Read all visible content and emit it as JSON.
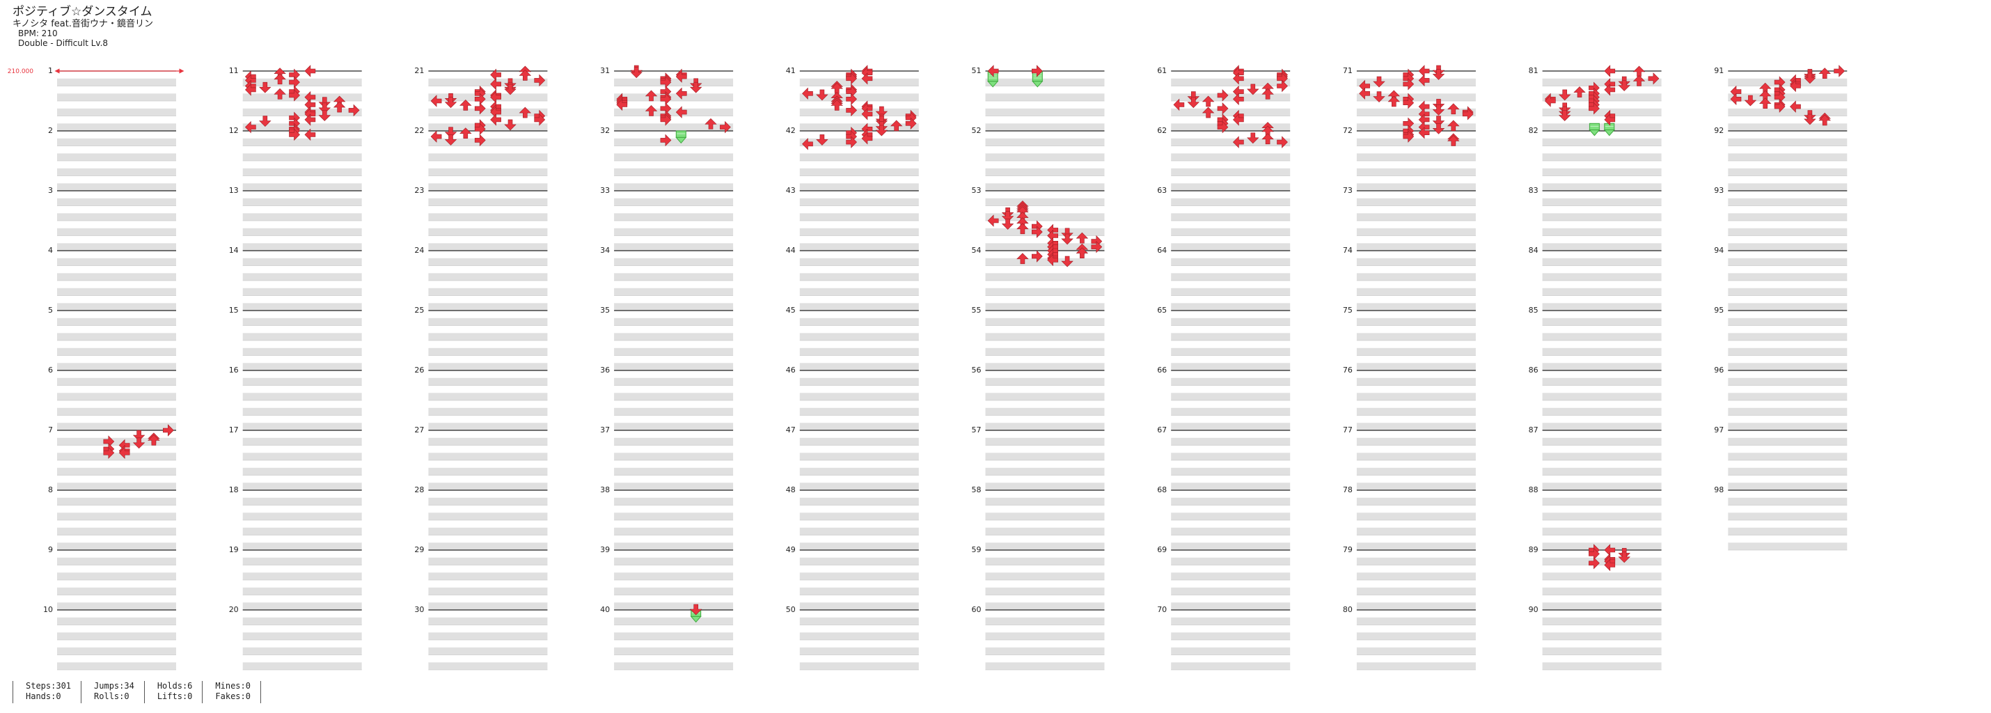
{
  "song": {
    "title": "ポジティブ☆ダンスタイム",
    "artist": "キノシタ feat.音街ウナ・鏡音リン",
    "bpm": "BPM: 210",
    "chart": "Double - Difficult Lv.8"
  },
  "bpm_marker": "210.000",
  "measures": [
    "1",
    "2",
    "3",
    "4",
    "5",
    "6",
    "7",
    "8",
    "9",
    "10",
    "11",
    "12",
    "13",
    "14",
    "15",
    "16",
    "17",
    "18",
    "19",
    "20",
    "21",
    "22",
    "23",
    "24",
    "25",
    "26",
    "27",
    "28",
    "29",
    "30",
    "31",
    "32",
    "33",
    "34",
    "35",
    "36",
    "37",
    "38",
    "39",
    "40",
    "41",
    "42",
    "43",
    "44",
    "45",
    "46",
    "47",
    "48",
    "49",
    "50",
    "51",
    "52",
    "53",
    "54",
    "55",
    "56",
    "57",
    "58",
    "59",
    "60",
    "61",
    "62",
    "63",
    "64",
    "65",
    "66",
    "67",
    "68",
    "69",
    "70",
    "71",
    "72",
    "73",
    "74",
    "75",
    "76",
    "77",
    "78",
    "79",
    "80",
    "81",
    "82",
    "83",
    "84",
    "85",
    "86",
    "87",
    "88",
    "89",
    "90",
    "91",
    "92",
    "93",
    "94",
    "95",
    "96",
    "97",
    "98"
  ],
  "stats": {
    "steps": "Steps:301",
    "hands": "Hands:0",
    "jumps": "Jumps:34",
    "rolls": "Rolls:0",
    "holds": "Holds:6",
    "lifts": "Lifts:0",
    "mines": "Mines:0",
    "fakes": "Fakes:0"
  },
  "colors": {
    "note": "#e8353f",
    "hold": "#7ee07e",
    "hold_border": "#3fa83f",
    "stripe": "#e0e0e0"
  },
  "icons": {
    "arrow": "arrow-icon",
    "hold": "hold-icon"
  },
  "chart_notes": [
    {
      "m": 7,
      "notes": [
        [
          0,
          7
        ],
        [
          6,
          5
        ],
        [
          8,
          6
        ],
        [
          10,
          6
        ],
        [
          12,
          3
        ],
        [
          14,
          5
        ],
        [
          16,
          4
        ],
        [
          20,
          3
        ],
        [
          22,
          4
        ],
        [
          24,
          3
        ],
        [
          24,
          4
        ]
      ]
    },
    {
      "m": 11,
      "notes": [
        [
          0,
          4
        ],
        [
          2,
          2
        ],
        [
          4,
          3
        ],
        [
          6,
          0
        ],
        [
          8,
          2
        ],
        [
          10,
          0
        ],
        [
          12,
          3
        ],
        [
          16,
          0
        ],
        [
          18,
          1
        ],
        [
          20,
          0
        ],
        [
          22,
          3
        ],
        [
          24,
          2
        ],
        [
          26,
          3
        ],
        [
          28,
          4
        ],
        [
          32,
          6
        ],
        [
          34,
          5
        ],
        [
          36,
          4
        ],
        [
          38,
          6
        ],
        [
          40,
          5
        ],
        [
          42,
          7
        ],
        [
          44,
          4
        ],
        [
          46,
          4
        ],
        [
          48,
          5
        ],
        [
          50,
          3
        ],
        [
          52,
          4
        ],
        [
          54,
          1
        ],
        [
          56,
          3
        ],
        [
          60,
          0
        ],
        [
          62,
          3
        ],
        [
          64,
          3
        ],
        [
          68,
          3
        ],
        [
          68,
          4
        ]
      ]
    },
    {
      "m": 21,
      "notes": [
        [
          0,
          6
        ],
        [
          4,
          4
        ],
        [
          4,
          6
        ],
        [
          10,
          7
        ],
        [
          14,
          4
        ],
        [
          14,
          5
        ],
        [
          18,
          5
        ],
        [
          20,
          5
        ],
        [
          22,
          3
        ],
        [
          24,
          3
        ],
        [
          26,
          4
        ],
        [
          28,
          4
        ],
        [
          30,
          1
        ],
        [
          30,
          3
        ],
        [
          32,
          0
        ],
        [
          34,
          1
        ],
        [
          36,
          2
        ],
        [
          38,
          4
        ],
        [
          40,
          3
        ],
        [
          42,
          4
        ],
        [
          44,
          4
        ],
        [
          44,
          6
        ],
        [
          48,
          7
        ],
        [
          52,
          4
        ],
        [
          52,
          7
        ],
        [
          58,
          3
        ],
        [
          58,
          5
        ],
        [
          62,
          3
        ],
        [
          66,
          1
        ],
        [
          66,
          2
        ],
        [
          70,
          0
        ],
        [
          74,
          1
        ],
        [
          74,
          3
        ]
      ]
    },
    {
      "m": 31,
      "notes": [
        [
          0,
          1
        ],
        [
          2,
          1
        ],
        [
          4,
          4
        ],
        [
          6,
          4
        ],
        [
          8,
          3
        ],
        [
          10,
          3
        ],
        [
          12,
          3
        ],
        [
          14,
          5
        ],
        [
          18,
          5
        ],
        [
          22,
          3
        ],
        [
          24,
          4
        ],
        [
          26,
          2
        ],
        [
          28,
          3
        ],
        [
          30,
          0
        ],
        [
          30,
          3
        ],
        [
          32,
          0
        ],
        [
          34,
          0
        ],
        [
          36,
          0
        ],
        [
          40,
          3
        ],
        [
          42,
          2
        ],
        [
          44,
          4
        ],
        [
          48,
          3
        ],
        [
          50,
          3
        ],
        [
          52,
          3
        ],
        [
          56,
          6
        ],
        [
          60,
          7
        ],
        [
          74,
          3
        ]
      ],
      "holds": [
        [
          64,
          4,
          68
        ]
      ]
    },
    {
      "m": 40,
      "notes": [
        [
          0,
          5
        ]
      ],
      "holds": [
        [
          0,
          5,
          4
        ]
      ]
    },
    {
      "m": 41,
      "notes": [
        [
          0,
          4
        ],
        [
          2,
          4
        ],
        [
          4,
          3
        ],
        [
          6,
          3
        ],
        [
          8,
          3
        ],
        [
          8,
          4
        ],
        [
          16,
          2
        ],
        [
          18,
          2
        ],
        [
          20,
          3
        ],
        [
          22,
          3
        ],
        [
          24,
          0
        ],
        [
          26,
          1
        ],
        [
          28,
          2
        ],
        [
          30,
          3
        ],
        [
          32,
          2
        ],
        [
          34,
          2
        ],
        [
          36,
          2
        ],
        [
          38,
          4
        ],
        [
          40,
          4
        ],
        [
          42,
          3
        ],
        [
          44,
          5
        ],
        [
          46,
          4
        ],
        [
          48,
          7
        ],
        [
          50,
          7
        ],
        [
          52,
          5
        ],
        [
          54,
          5
        ],
        [
          56,
          7
        ],
        [
          58,
          6
        ],
        [
          60,
          5
        ],
        [
          62,
          4
        ],
        [
          64,
          5
        ],
        [
          66,
          3
        ],
        [
          68,
          4
        ],
        [
          70,
          3
        ],
        [
          72,
          4
        ],
        [
          74,
          1
        ],
        [
          76,
          3
        ],
        [
          78,
          0
        ]
      ]
    },
    {
      "m": 51,
      "notes": [
        [
          0,
          0
        ],
        [
          0,
          3
        ]
      ],
      "holds": [
        [
          0,
          0,
          8
        ],
        [
          0,
          3,
          8
        ]
      ]
    },
    {
      "m": 53,
      "notes": [
        [
          16,
          2
        ],
        [
          18,
          2
        ],
        [
          20,
          2
        ],
        [
          22,
          2
        ],
        [
          24,
          1
        ],
        [
          28,
          1
        ],
        [
          28,
          2
        ],
        [
          32,
          0
        ],
        [
          34,
          2
        ],
        [
          36,
          1
        ],
        [
          38,
          3
        ],
        [
          40,
          2
        ],
        [
          42,
          4
        ],
        [
          44,
          3
        ],
        [
          46,
          5
        ],
        [
          48,
          4
        ],
        [
          50,
          6
        ],
        [
          52,
          5
        ],
        [
          54,
          7
        ],
        [
          56,
          4
        ],
        [
          60,
          4
        ],
        [
          60,
          7
        ],
        [
          62,
          6
        ],
        [
          64,
          4
        ],
        [
          66,
          6
        ],
        [
          68,
          4
        ],
        [
          70,
          3
        ],
        [
          72,
          2
        ],
        [
          72,
          4
        ],
        [
          74,
          4
        ],
        [
          76,
          5
        ]
      ]
    },
    {
      "m": 61,
      "notes": [
        [
          0,
          4
        ],
        [
          2,
          4
        ],
        [
          4,
          7
        ],
        [
          6,
          7
        ],
        [
          8,
          4
        ],
        [
          8,
          7
        ],
        [
          16,
          7
        ],
        [
          18,
          6
        ],
        [
          20,
          5
        ],
        [
          22,
          4
        ],
        [
          24,
          6
        ],
        [
          26,
          3
        ],
        [
          28,
          1
        ],
        [
          30,
          4
        ],
        [
          32,
          2
        ],
        [
          34,
          1
        ],
        [
          36,
          0
        ],
        [
          40,
          3
        ],
        [
          44,
          2
        ],
        [
          48,
          4
        ],
        [
          52,
          3
        ],
        [
          52,
          4
        ],
        [
          56,
          3
        ],
        [
          60,
          3
        ],
        [
          60,
          6
        ],
        [
          64,
          6
        ],
        [
          72,
          5
        ],
        [
          72,
          6
        ],
        [
          76,
          4
        ],
        [
          76,
          7
        ]
      ]
    },
    {
      "m": 71,
      "notes": [
        [
          0,
          4
        ],
        [
          0,
          5
        ],
        [
          4,
          3
        ],
        [
          4,
          5
        ],
        [
          8,
          3
        ],
        [
          10,
          4
        ],
        [
          12,
          1
        ],
        [
          14,
          3
        ],
        [
          16,
          0
        ],
        [
          24,
          0
        ],
        [
          26,
          2
        ],
        [
          28,
          1
        ],
        [
          30,
          3
        ],
        [
          32,
          2
        ],
        [
          34,
          3
        ],
        [
          36,
          5
        ],
        [
          38,
          4
        ],
        [
          40,
          6
        ],
        [
          42,
          5
        ],
        [
          44,
          7
        ],
        [
          46,
          4
        ],
        [
          46,
          7
        ],
        [
          52,
          4
        ],
        [
          54,
          5
        ],
        [
          56,
          3
        ],
        [
          58,
          6
        ],
        [
          60,
          4
        ],
        [
          62,
          5
        ],
        [
          64,
          3
        ],
        [
          66,
          4
        ],
        [
          68,
          3
        ],
        [
          70,
          3
        ],
        [
          72,
          6
        ],
        [
          74,
          6
        ]
      ]
    },
    {
      "m": 81,
      "notes": [
        [
          0,
          4
        ],
        [
          0,
          6
        ],
        [
          8,
          7
        ],
        [
          10,
          6
        ],
        [
          12,
          5
        ],
        [
          14,
          4
        ],
        [
          16,
          5
        ],
        [
          18,
          3
        ],
        [
          20,
          4
        ],
        [
          22,
          2
        ],
        [
          24,
          3
        ],
        [
          26,
          1
        ],
        [
          28,
          3
        ],
        [
          30,
          0
        ],
        [
          32,
          0
        ],
        [
          32,
          3
        ],
        [
          36,
          3
        ],
        [
          40,
          1
        ],
        [
          40,
          3
        ],
        [
          44,
          1
        ],
        [
          48,
          1
        ],
        [
          48,
          4
        ],
        [
          52,
          4
        ]
      ],
      "holds": [
        [
          56,
          3,
          60
        ],
        [
          56,
          4,
          60
        ]
      ]
    },
    {
      "m": 89,
      "notes": [
        [
          0,
          3
        ],
        [
          0,
          4
        ],
        [
          4,
          3
        ],
        [
          4,
          5
        ],
        [
          8,
          5
        ],
        [
          10,
          4
        ],
        [
          12,
          4
        ],
        [
          14,
          3
        ],
        [
          16,
          4
        ]
      ]
    },
    {
      "m": 91,
      "notes": [
        [
          0,
          7
        ],
        [
          2,
          6
        ],
        [
          4,
          5
        ],
        [
          6,
          5
        ],
        [
          8,
          5
        ],
        [
          10,
          4
        ],
        [
          12,
          3
        ],
        [
          14,
          4
        ],
        [
          16,
          4
        ],
        [
          18,
          2
        ],
        [
          20,
          3
        ],
        [
          22,
          0
        ],
        [
          24,
          3
        ],
        [
          26,
          2
        ],
        [
          28,
          3
        ],
        [
          30,
          0
        ],
        [
          32,
          1
        ],
        [
          34,
          2
        ],
        [
          36,
          3
        ],
        [
          38,
          3
        ],
        [
          38,
          4
        ],
        [
          48,
          5
        ],
        [
          50,
          6
        ],
        [
          52,
          5
        ],
        [
          52,
          6
        ]
      ]
    }
  ]
}
